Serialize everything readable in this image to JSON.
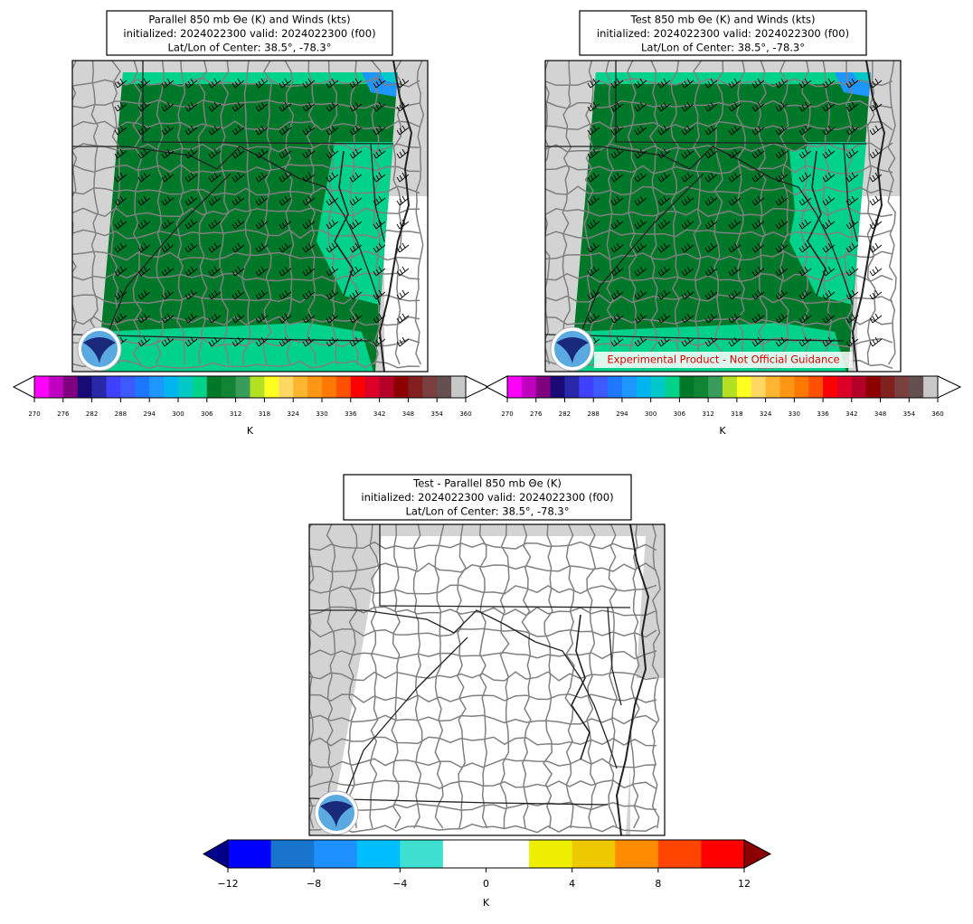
{
  "panels": [
    {
      "title": [
        "Parallel 850 mb Θe (K) and Winds (kts)",
        "initialized: 2024022300 valid: 2024022300 (f00)",
        "Lat/Lon of Center: 38.5°, -78.3°"
      ],
      "colorbar": {
        "ticks": [
          270,
          276,
          282,
          288,
          294,
          300,
          306,
          312,
          318,
          324,
          330,
          336,
          342,
          348,
          354,
          360
        ],
        "colors": [
          "#ff00ff",
          "#c000c0",
          "#800080",
          "#1a0a78",
          "#2828a8",
          "#4040ff",
          "#3c5aff",
          "#1e78ff",
          "#1e96ff",
          "#00b4f0",
          "#00c8c8",
          "#00d28c",
          "#00782a",
          "#118534",
          "#3a9c5a",
          "#b4e024",
          "#ffff20",
          "#ffd864",
          "#ffb432",
          "#ff9614",
          "#ff7800",
          "#ff5000",
          "#ff0000",
          "#dc0028",
          "#b40028",
          "#8c0000",
          "#822020",
          "#7a4040",
          "#645050",
          "#c8c8c8"
        ],
        "extend_colors": [
          "#ffffff",
          "#ffffff"
        ],
        "label": "K"
      }
    },
    {
      "title": [
        "Test 850 mb Θe (K) and Winds (kts)",
        "initialized: 2024022300 valid: 2024022300 (f00)",
        "Lat/Lon of Center: 38.5°, -78.3°"
      ],
      "colorbar": {
        "ticks": [
          270,
          276,
          282,
          288,
          294,
          300,
          306,
          312,
          318,
          324,
          330,
          336,
          342,
          348,
          354,
          360
        ],
        "colors": [
          "#ff00ff",
          "#c000c0",
          "#800080",
          "#1a0a78",
          "#2828a8",
          "#4040ff",
          "#3c5aff",
          "#1e78ff",
          "#1e96ff",
          "#00b4f0",
          "#00c8c8",
          "#00d28c",
          "#00782a",
          "#118534",
          "#3a9c5a",
          "#b4e024",
          "#ffff20",
          "#ffd864",
          "#ffb432",
          "#ff9614",
          "#ff7800",
          "#ff5000",
          "#ff0000",
          "#dc0028",
          "#b40028",
          "#8c0000",
          "#822020",
          "#7a4040",
          "#645050",
          "#c8c8c8"
        ],
        "extend_colors": [
          "#ffffff",
          "#ffffff"
        ],
        "label": "K"
      },
      "watermark": "Experimental Product - Not Official Guidance"
    },
    {
      "title": [
        "Test - Parallel 850 mb Θe (K)",
        "initialized: 2024022300 valid: 2024022300 (f00)",
        "Lat/Lon of Center: 38.5°, -78.3°"
      ],
      "colorbar": {
        "ticks": [
          {
            "value": -12,
            "label": "−12"
          },
          {
            "value": -8,
            "label": "−8"
          },
          {
            "value": -4,
            "label": "−4"
          },
          0,
          4,
          8,
          12
        ],
        "colors": [
          "#0000ff",
          "#1874cd",
          "#1e90ff",
          "#00bfff",
          "#40e0d0",
          "#ffffff",
          "#ffffff",
          "#eeee00",
          "#eec900",
          "#ff8c00",
          "#ff4500",
          "#ff0000"
        ],
        "extend_colors": [
          "#00008b",
          "#8b0000"
        ],
        "label": "K"
      }
    }
  ]
}
